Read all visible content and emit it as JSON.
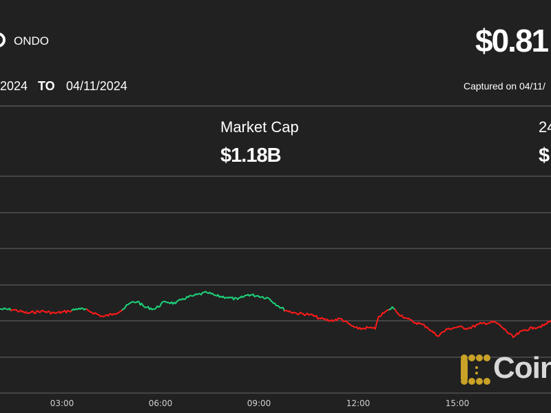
{
  "header": {
    "asset": "ONDO",
    "price": "$0.81",
    "date_from": "2024",
    "to_label": "TO",
    "date_to": "04/11/2024",
    "captured": "Captured on 04/11/"
  },
  "stats": {
    "market_cap_label": "Market Cap",
    "market_cap_value": "$1.18B",
    "volume_label_partial": "24",
    "volume_value_partial": "$"
  },
  "watermark": "Coin",
  "colors": {
    "background": "#212121",
    "up": "#1fd27a",
    "down": "#ff1a1a",
    "grid": "#444444",
    "brand_gold": "#c9a227"
  },
  "chart_data": {
    "type": "line",
    "title": "",
    "xlabel": "",
    "ylabel": "",
    "x_tick_labels": [
      "03:00",
      "06:00",
      "09:00",
      "12:00",
      "15:00"
    ],
    "grid": true,
    "reference_open": 0.82,
    "coloring": "green above open, red below open",
    "series": [
      {
        "x": [
          "01:07",
          "01:32",
          "01:57",
          "02:22",
          "02:47",
          "03:13",
          "03:31",
          "03:50",
          "04:15",
          "04:34",
          "04:50",
          "05:05",
          "05:18",
          "05:30",
          "05:49",
          "06:08",
          "06:27",
          "06:40",
          "06:58",
          "07:24",
          "07:42",
          "08:01",
          "08:20",
          "08:39",
          "08:58",
          "09:16",
          "09:35",
          "09:48",
          "10:07",
          "10:32",
          "10:51",
          "11:09",
          "11:28",
          "11:47",
          "12:00",
          "12:18",
          "12:31",
          "12:37",
          "12:56",
          "13:02",
          "13:12",
          "13:27",
          "13:40",
          "13:52",
          "14:05",
          "14:24",
          "14:43",
          "15:01",
          "15:20",
          "15:45",
          "16:10",
          "16:23",
          "16:42",
          "17:01",
          "17:20",
          "17:38",
          "17:51"
        ],
        "values": [
          0.8205,
          0.82,
          0.8175,
          0.819,
          0.8175,
          0.819,
          0.821,
          0.819,
          0.815,
          0.817,
          0.82,
          0.825,
          0.826,
          0.822,
          0.8205,
          0.826,
          0.8245,
          0.828,
          0.83,
          0.8325,
          0.83,
          0.829,
          0.8275,
          0.831,
          0.83,
          0.8285,
          0.8225,
          0.8195,
          0.8175,
          0.8165,
          0.8135,
          0.812,
          0.8135,
          0.8085,
          0.806,
          0.807,
          0.806,
          0.815,
          0.82,
          0.822,
          0.8175,
          0.814,
          0.811,
          0.81,
          0.8075,
          0.801,
          0.806,
          0.8075,
          0.8065,
          0.81,
          0.811,
          0.807,
          0.8,
          0.805,
          0.807,
          0.8085,
          0.812
        ]
      }
    ]
  }
}
